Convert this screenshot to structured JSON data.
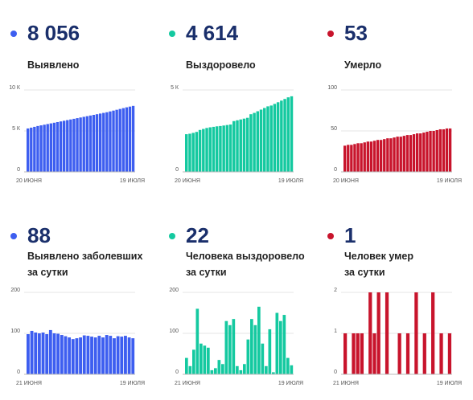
{
  "panels": [
    {
      "value": "8 056",
      "label": [
        "Выявлено"
      ],
      "color": "#3d5ef0",
      "chart_data": {
        "type": "bar",
        "xlabel_start": "20 июня",
        "xlabel_end": "19 июля",
        "ylim": [
          0,
          10000
        ],
        "yticks": [
          0,
          5000,
          10000
        ],
        "yticklabels": [
          "0",
          "5 К",
          "10 К"
        ],
        "values": [
          5300,
          5400,
          5500,
          5600,
          5680,
          5760,
          5840,
          5920,
          6000,
          6080,
          6160,
          6240,
          6320,
          6400,
          6480,
          6560,
          6640,
          6720,
          6800,
          6880,
          6960,
          7040,
          7120,
          7200,
          7280,
          7380,
          7480,
          7580,
          7680,
          7780,
          7880,
          7970,
          8056
        ]
      }
    },
    {
      "value": "4 614",
      "label": [
        "Выздоровело"
      ],
      "color": "#14c9a0",
      "chart_data": {
        "type": "bar",
        "xlabel_start": "20 июня",
        "xlabel_end": "19 июля",
        "ylim": [
          0,
          5000
        ],
        "yticks": [
          0,
          5000
        ],
        "yticklabels": [
          "0",
          "5 К"
        ],
        "values": [
          2300,
          2330,
          2380,
          2440,
          2560,
          2620,
          2680,
          2720,
          2750,
          2780,
          2800,
          2830,
          2860,
          2890,
          3100,
          3150,
          3200,
          3250,
          3300,
          3520,
          3600,
          3700,
          3800,
          3900,
          4000,
          4050,
          4150,
          4250,
          4350,
          4450,
          4550,
          4614
        ]
      }
    },
    {
      "value": "53",
      "label": [
        "Умерло"
      ],
      "color": "#c8142c",
      "chart_data": {
        "type": "bar",
        "xlabel_start": "20 июня",
        "xlabel_end": "19 июля",
        "ylim": [
          0,
          100
        ],
        "yticks": [
          0,
          50,
          100
        ],
        "yticklabels": [
          "0",
          "50",
          "100"
        ],
        "values": [
          32,
          33,
          33,
          34,
          35,
          35,
          36,
          37,
          37,
          38,
          39,
          39,
          40,
          41,
          41,
          42,
          43,
          43,
          44,
          45,
          45,
          46,
          47,
          47,
          48,
          49,
          50,
          50,
          51,
          52,
          52,
          53,
          53
        ]
      }
    },
    {
      "value": "88",
      "label": [
        "Выявлено заболевших",
        "за сутки"
      ],
      "color": "#3d5ef0",
      "chart_data": {
        "type": "bar",
        "xlabel_start": "21 июня",
        "xlabel_end": "19 июля",
        "ylim": [
          0,
          200
        ],
        "yticks": [
          0,
          100,
          200
        ],
        "yticklabels": [
          "0",
          "100",
          "200"
        ],
        "values": [
          98,
          106,
          102,
          100,
          102,
          98,
          108,
          100,
          99,
          96,
          93,
          90,
          86,
          88,
          90,
          95,
          94,
          92,
          90,
          94,
          90,
          96,
          94,
          88,
          93,
          92,
          94,
          90,
          88
        ]
      }
    },
    {
      "value": "22",
      "label": [
        "Человека выздоровело",
        "за сутки"
      ],
      "color": "#14c9a0",
      "chart_data": {
        "type": "bar",
        "xlabel_start": "21 июня",
        "xlabel_end": "19 июля",
        "ylim": [
          0,
          200
        ],
        "yticks": [
          0,
          100,
          200
        ],
        "yticklabels": [
          "0",
          "100",
          "200"
        ],
        "values": [
          40,
          20,
          60,
          160,
          75,
          70,
          65,
          10,
          15,
          35,
          25,
          130,
          120,
          135,
          20,
          10,
          25,
          85,
          135,
          120,
          165,
          75,
          20,
          110,
          5,
          150,
          130,
          145,
          40,
          22
        ]
      }
    },
    {
      "value": "1",
      "label": [
        "Человек умер",
        "за сутки"
      ],
      "color": "#c8142c",
      "chart_data": {
        "type": "bar",
        "xlabel_start": "21 июня",
        "xlabel_end": "19 июля",
        "ylim": [
          0,
          2
        ],
        "yticks": [
          0,
          1,
          2
        ],
        "yticklabels": [
          "0",
          "1",
          "2"
        ],
        "values": [
          1,
          0,
          1,
          1,
          1,
          0,
          2,
          1,
          2,
          0,
          2,
          0,
          0,
          1,
          0,
          1,
          0,
          2,
          0,
          1,
          0,
          2,
          0,
          1,
          0,
          1
        ]
      }
    }
  ]
}
